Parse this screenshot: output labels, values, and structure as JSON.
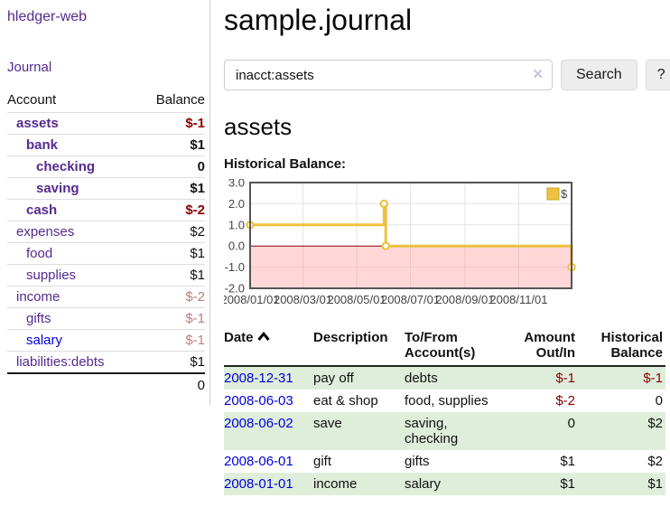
{
  "app": {
    "title": "hledger-web"
  },
  "sidebar": {
    "nav": {
      "journal": "Journal"
    },
    "table": {
      "account_header": "Account",
      "balance_header": "Balance"
    },
    "accounts": [
      {
        "name": "assets",
        "indent": 0,
        "bold": true,
        "balance": "$-1",
        "tone": "neg-strong",
        "link": "purple"
      },
      {
        "name": "bank",
        "indent": 1,
        "bold": true,
        "balance": "$1",
        "tone": "normal",
        "link": "purple"
      },
      {
        "name": "checking",
        "indent": 2,
        "bold": true,
        "balance": "0",
        "tone": "normal",
        "link": "purple"
      },
      {
        "name": "saving",
        "indent": 2,
        "bold": true,
        "balance": "$1",
        "tone": "normal",
        "link": "purple"
      },
      {
        "name": "cash",
        "indent": 1,
        "bold": true,
        "balance": "$-2",
        "tone": "neg-strong",
        "link": "purple"
      },
      {
        "name": "expenses",
        "indent": 0,
        "bold": false,
        "balance": "$2",
        "tone": "normal",
        "link": "purple"
      },
      {
        "name": "food",
        "indent": 1,
        "bold": false,
        "balance": "$1",
        "tone": "normal",
        "link": "purple"
      },
      {
        "name": "supplies",
        "indent": 1,
        "bold": false,
        "balance": "$1",
        "tone": "normal",
        "link": "purple"
      },
      {
        "name": "income",
        "indent": 0,
        "bold": false,
        "balance": "$-2",
        "tone": "neg-soft",
        "link": "purple"
      },
      {
        "name": "gifts",
        "indent": 1,
        "bold": false,
        "balance": "$-1",
        "tone": "neg-soft",
        "link": "purple"
      },
      {
        "name": "salary",
        "indent": 1,
        "bold": false,
        "balance": "$-1",
        "tone": "neg-soft",
        "link": "blue"
      },
      {
        "name": "liabilities:debts",
        "indent": 0,
        "bold": false,
        "balance": "$1",
        "tone": "normal",
        "link": "purple"
      }
    ],
    "total": "0"
  },
  "header": {
    "title": "sample.journal"
  },
  "search": {
    "value": "inacct:assets",
    "clear_icon": "✕",
    "button_label": "Search",
    "help_label": "?"
  },
  "account_page": {
    "heading": "assets",
    "chart_title": "Historical Balance:"
  },
  "chart_data": {
    "type": "line",
    "mode": "steps",
    "title": "Historical Balance:",
    "x_range": [
      "2008-01-01",
      "2008-12-31"
    ],
    "ylim": [
      -2,
      3
    ],
    "y_ticks": [
      {
        "v": 3,
        "label": "3.0"
      },
      {
        "v": 2,
        "label": "2.0"
      },
      {
        "v": 1,
        "label": "1.0"
      },
      {
        "v": 0,
        "label": "0.0"
      },
      {
        "v": -1,
        "label": "-1.0"
      },
      {
        "v": -2,
        "label": "-2.0"
      }
    ],
    "x_ticks": [
      {
        "date": "2008-01-01",
        "label": "2008/01/01"
      },
      {
        "date": "2008-03-01",
        "label": "2008/03/01"
      },
      {
        "date": "2008-05-01",
        "label": "2008/05/01"
      },
      {
        "date": "2008-07-01",
        "label": "2008/07/01"
      },
      {
        "date": "2008-09-01",
        "label": "2008/09/01"
      },
      {
        "date": "2008-11-01",
        "label": "2008/11/01"
      }
    ],
    "series": [
      {
        "name": "$",
        "color": "#EDC240",
        "points": [
          {
            "date": "2008-01-01",
            "value": 1
          },
          {
            "date": "2008-06-01",
            "value": 2
          },
          {
            "date": "2008-06-03",
            "value": 0
          },
          {
            "date": "2008-12-31",
            "value": -1
          }
        ]
      }
    ],
    "legend": {
      "label": "$",
      "position": "top-right"
    },
    "negative_region_fill": "#FFA0A0",
    "zero_line_color": "#8B0000",
    "border_color": "#545454",
    "grid": true
  },
  "transactions": {
    "headers": {
      "date": [
        "Date"
      ],
      "description": [
        "Description"
      ],
      "tofrom": [
        "To/From",
        "Account(s)"
      ],
      "amount": [
        "Amount",
        "Out/In"
      ],
      "balance": [
        "Historical",
        "Balance"
      ],
      "sort_icon": "chevron-up"
    },
    "rows": [
      {
        "date": "2008-12-31",
        "description": "pay off",
        "accounts": "debts",
        "amount": "$-1",
        "amount_negative": true,
        "balance": "$-1",
        "balance_negative": true
      },
      {
        "date": "2008-06-03",
        "description": "eat & shop",
        "accounts": "food, supplies",
        "amount": "$-2",
        "amount_negative": true,
        "balance": "0",
        "balance_negative": false
      },
      {
        "date": "2008-06-02",
        "description": "save",
        "accounts": "saving, checking",
        "amount": "0",
        "amount_negative": false,
        "balance": "$2",
        "balance_negative": false
      },
      {
        "date": "2008-06-01",
        "description": "gift",
        "accounts": "gifts",
        "amount": "$1",
        "amount_negative": false,
        "balance": "$2",
        "balance_negative": false
      },
      {
        "date": "2008-01-01",
        "description": "income",
        "accounts": "salary",
        "amount": "$1",
        "amount_negative": false,
        "balance": "$1",
        "balance_negative": false
      }
    ]
  },
  "colors": {
    "link_purple": "#542A8F",
    "link_blue": "#0000DD",
    "negative_strong": "#8B0000",
    "negative_soft": "#C07C7C",
    "row_shade_green": "#DEEEDA",
    "chart_line_gold": "#EDC240"
  }
}
